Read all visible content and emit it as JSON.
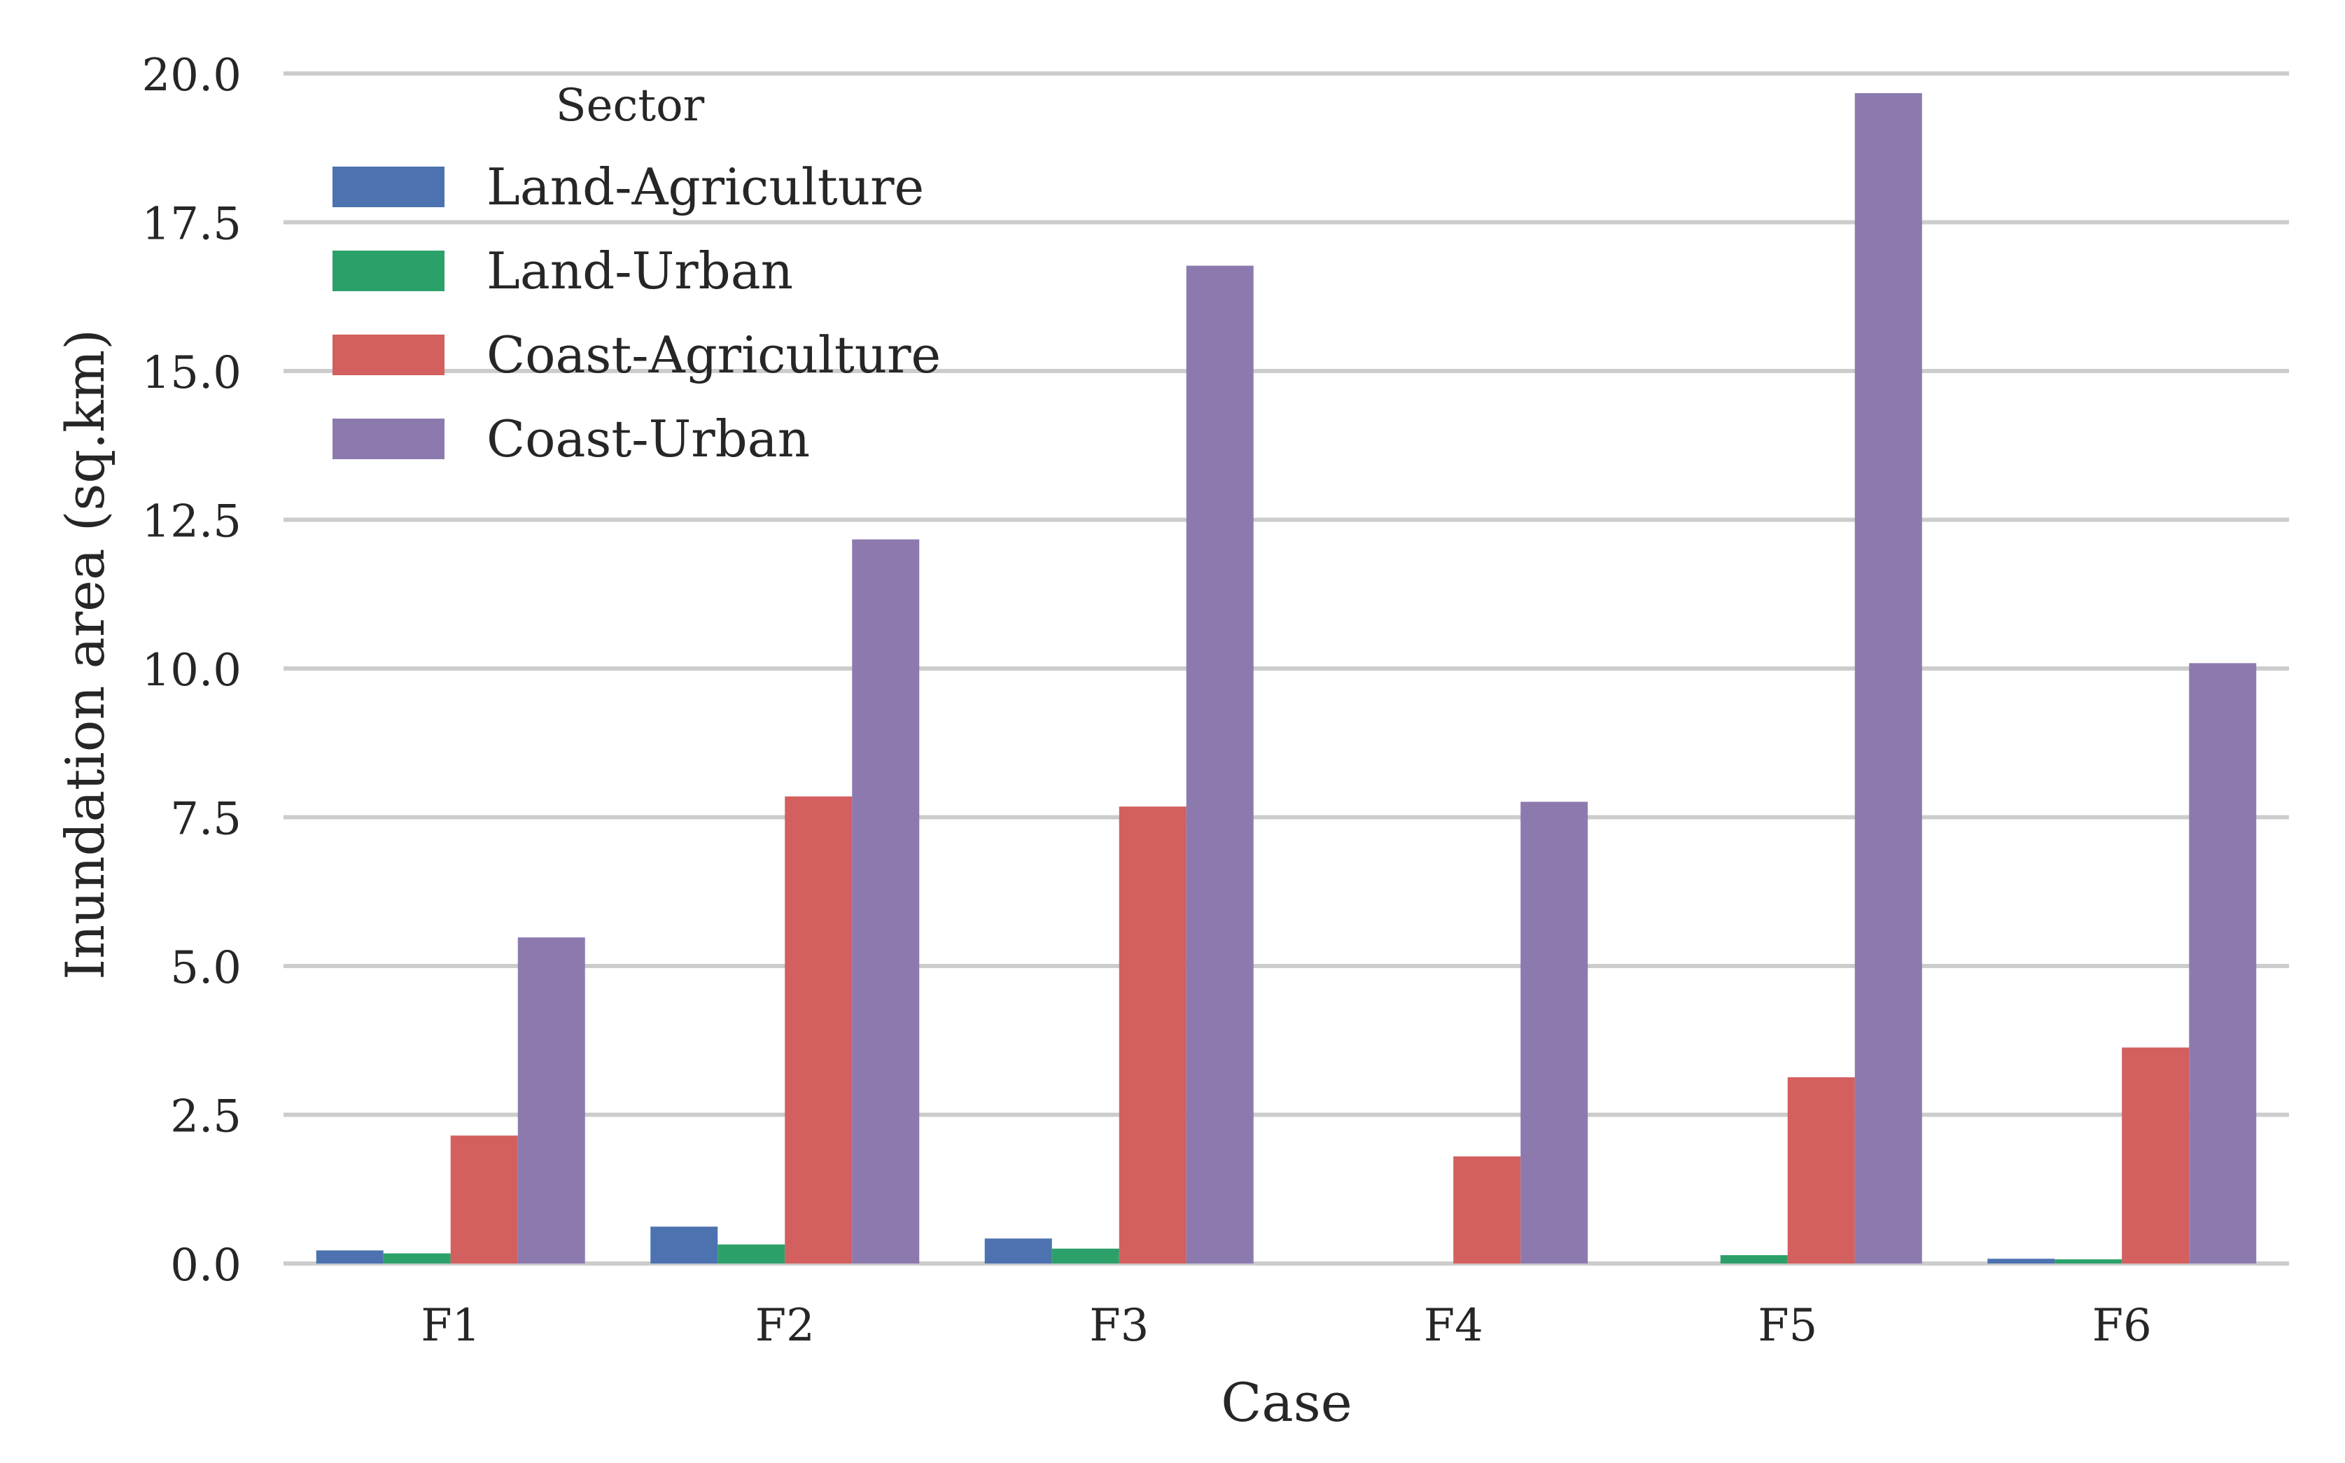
{
  "chart_data": {
    "type": "bar",
    "title": "",
    "xlabel": "Case",
    "ylabel": "Inundation area (sq.km)",
    "categories": [
      "F1",
      "F2",
      "F3",
      "F4",
      "F5",
      "F6"
    ],
    "ylim": [
      0,
      20
    ],
    "yticks": [
      0,
      2.5,
      5,
      7.5,
      10,
      12.5,
      15,
      17.5,
      20
    ],
    "ytick_labels": [
      "0.0",
      "2.5",
      "5.0",
      "7.5",
      "10.0",
      "12.5",
      "15.0",
      "17.5",
      "20.0"
    ],
    "grid": "horizontal",
    "legend": {
      "title": "Sector",
      "placement": "top-left"
    },
    "series": [
      {
        "name": "Land-Agriculture",
        "color": "#4c72b0",
        "values": [
          0.22,
          0.62,
          0.42,
          0.0,
          0.0,
          0.08
        ]
      },
      {
        "name": "Land-Urban",
        "color": "#2ca069",
        "values": [
          0.17,
          0.32,
          0.25,
          0.0,
          0.14,
          0.07
        ]
      },
      {
        "name": "Coast-Agriculture",
        "color": "#d35f5f",
        "values": [
          2.15,
          7.85,
          7.68,
          1.8,
          3.13,
          3.63
        ]
      },
      {
        "name": "Coast-Urban",
        "color": "#8c7aaf",
        "values": [
          5.48,
          12.17,
          16.77,
          7.76,
          19.67,
          10.09
        ]
      }
    ]
  }
}
